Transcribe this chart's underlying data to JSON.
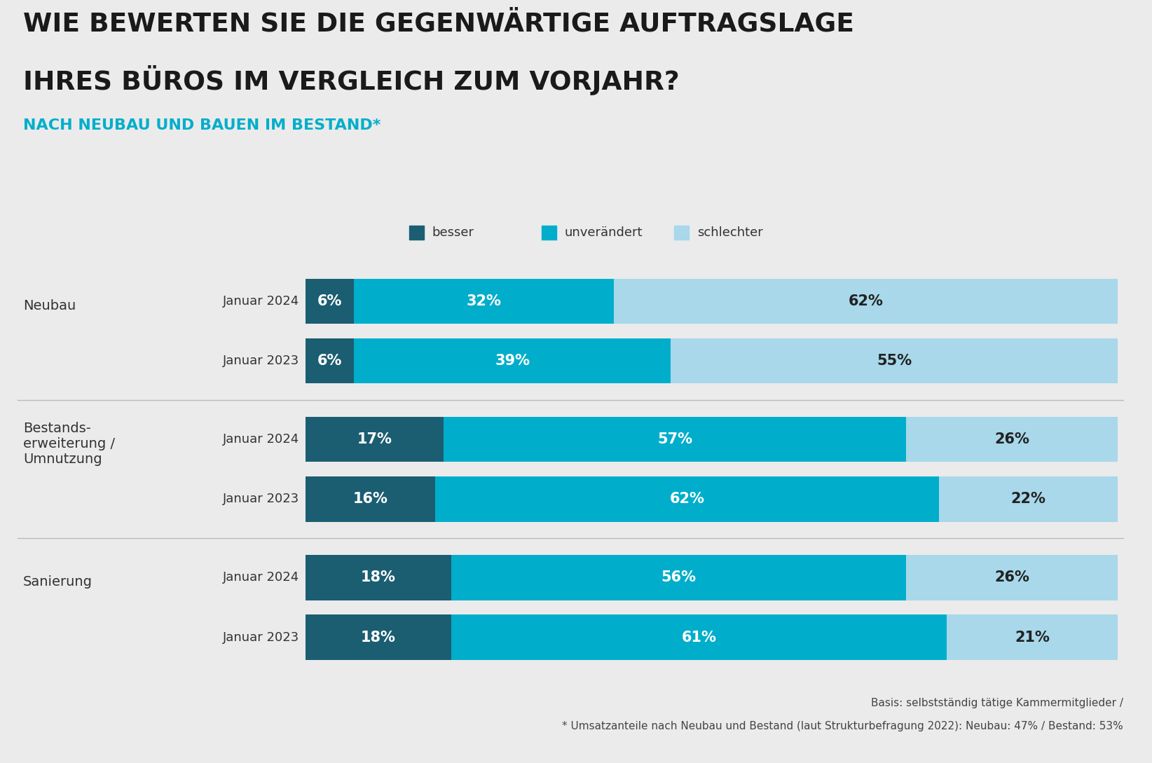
{
  "title_line1": "WIE BEWERTEN SIE DIE GEGENWÄRTIGE AUFTRAGSLAGE",
  "title_line2": "IHRES BÜROS IM VERGLEICH ZUM VORJAHR?",
  "subtitle": "NACH NEUBAU UND BAUEN IM BESTAND*",
  "background_color": "#ebebeb",
  "chart_bg": "#ffffff",
  "colors": {
    "besser": "#1b5e72",
    "unveraendert": "#00aecb",
    "schlechter": "#a8d8ea"
  },
  "legend_labels": [
    "besser",
    "unverändert",
    "schlechter"
  ],
  "groups": [
    {
      "group_label": "Neubau",
      "rows": [
        {
          "label": "Januar 2024",
          "besser": 6,
          "unveraendert": 32,
          "schlechter": 62
        },
        {
          "label": "Januar 2023",
          "besser": 6,
          "unveraendert": 39,
          "schlechter": 55
        }
      ]
    },
    {
      "group_label": "Bestands-\nerweiterung /\nUmnutzung",
      "rows": [
        {
          "label": "Januar 2024",
          "besser": 17,
          "unveraendert": 57,
          "schlechter": 26
        },
        {
          "label": "Januar 2023",
          "besser": 16,
          "unveraendert": 62,
          "schlechter": 22
        }
      ]
    },
    {
      "group_label": "Sanierung",
      "rows": [
        {
          "label": "Januar 2024",
          "besser": 18,
          "unveraendert": 56,
          "schlechter": 26
        },
        {
          "label": "Januar 2023",
          "besser": 18,
          "unveraendert": 61,
          "schlechter": 21
        }
      ]
    }
  ],
  "footnote_line1": "Basis: selbstständig tätige Kammermitglieder /",
  "footnote_line2": "* Umsatzanteile nach Neubau und Bestand (laut Strukturbefragung 2022): Neubau: 47% / Bestand: 53%",
  "title_fontsize": 27,
  "subtitle_fontsize": 16,
  "bar_label_fontsize": 15,
  "row_label_fontsize": 13,
  "group_label_fontsize": 14,
  "legend_fontsize": 13,
  "footnote_fontsize": 11
}
